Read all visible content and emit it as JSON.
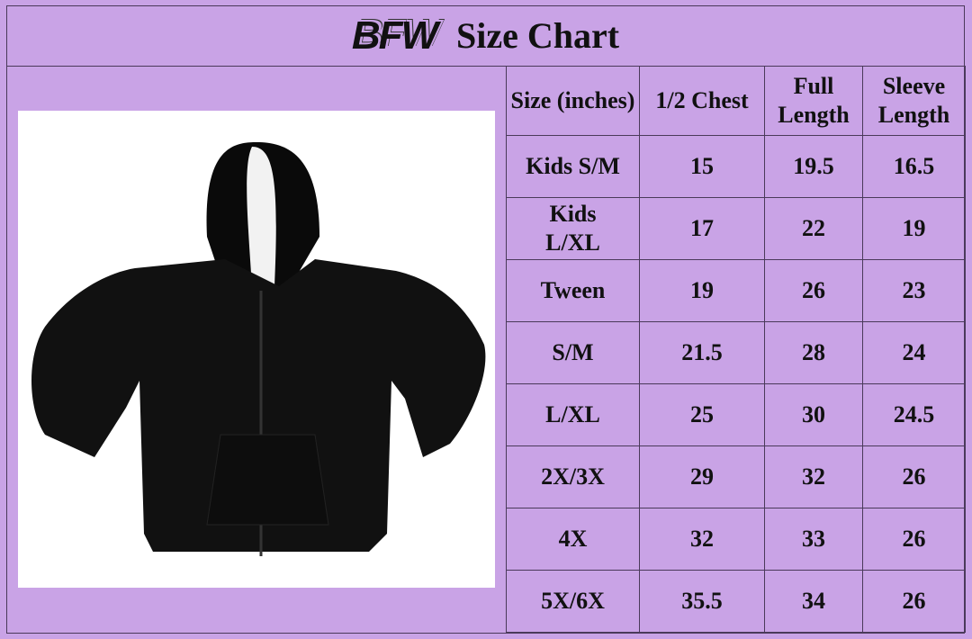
{
  "title": {
    "logo": "BFW",
    "text": "Size Chart"
  },
  "colors": {
    "background": "#c9a3e6",
    "border": "#4a3a5a",
    "text": "#111111"
  },
  "image": {
    "subject": "black zip-up hoodie"
  },
  "table": {
    "headers": [
      "Size (inches)",
      "1/2 Chest",
      "Full Length",
      "Sleeve Length"
    ],
    "rows": [
      [
        "Kids S/M",
        "15",
        "19.5",
        "16.5"
      ],
      [
        "Kids L/XL",
        "17",
        "22",
        "19"
      ],
      [
        "Tween",
        "19",
        "26",
        "23"
      ],
      [
        "S/M",
        "21.5",
        "28",
        "24"
      ],
      [
        "L/XL",
        "25",
        "30",
        "24.5"
      ],
      [
        "2X/3X",
        "29",
        "32",
        "26"
      ],
      [
        "4X",
        "32",
        "33",
        "26"
      ],
      [
        "5X/6X",
        "35.5",
        "34",
        "26"
      ]
    ]
  }
}
